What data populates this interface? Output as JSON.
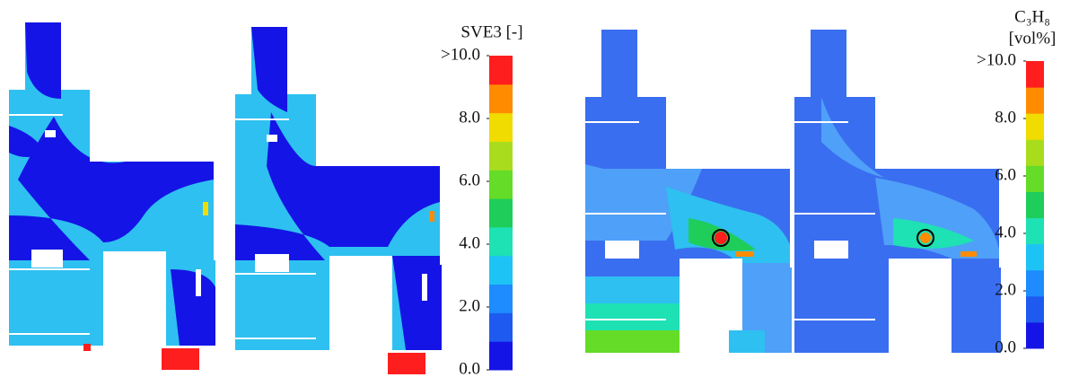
{
  "legends": [
    {
      "title": [
        "SVE3 [-]"
      ],
      "range": [
        0,
        10
      ],
      "ticks": [
        {
          "value": 10,
          "label": ">10.0"
        },
        {
          "value": 8,
          "label": "8.0"
        },
        {
          "value": 6,
          "label": "6.0"
        },
        {
          "value": 4,
          "label": "4.0"
        },
        {
          "value": 2,
          "label": "2.0"
        },
        {
          "value": 0,
          "label": "0.0"
        }
      ],
      "colors": [
        "#1414e6",
        "#1e5af0",
        "#1e8cff",
        "#1ec3f5",
        "#1ee1b4",
        "#1ecd5a",
        "#64dc28",
        "#aadc1e",
        "#f0dc00",
        "#ff8c00",
        "#ff1e1e"
      ]
    },
    {
      "title": [
        "C₃H₈",
        "[vol%]"
      ],
      "range": [
        0,
        10
      ],
      "ticks": [
        {
          "value": 10,
          "label": ">10.0"
        },
        {
          "value": 8,
          "label": "8.0"
        },
        {
          "value": 6,
          "label": "6.0"
        },
        {
          "value": 4,
          "label": "4.0"
        },
        {
          "value": 2,
          "label": "2.0"
        },
        {
          "value": 0,
          "label": "0.0"
        }
      ],
      "colors": [
        "#1414e6",
        "#1e5af0",
        "#1e8cff",
        "#1ec3f5",
        "#1ee1b4",
        "#1ecd5a",
        "#64dc28",
        "#aadc1e",
        "#f0dc00",
        "#ff8c00",
        "#ff1e1e"
      ]
    }
  ]
}
